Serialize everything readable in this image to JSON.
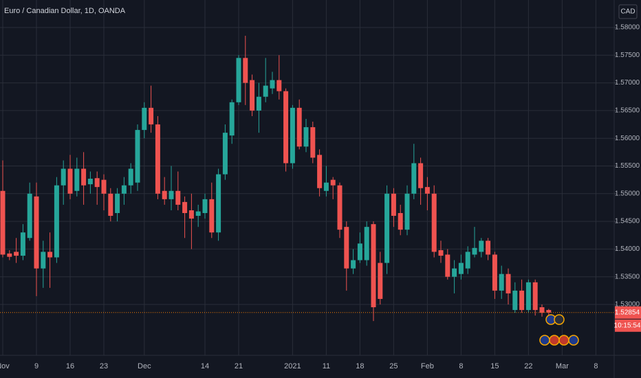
{
  "chart_data": {
    "type": "candlestick",
    "title": "Euro / Canadian Dollar, 1D, OANDA",
    "currency": "CAD",
    "up_color": "#26a69a",
    "down_color": "#ef5350",
    "grid": true,
    "categories": [
      "Nov",
      null,
      null,
      null,
      null,
      "9",
      null,
      null,
      null,
      null,
      "16",
      null,
      null,
      null,
      null,
      "23",
      null,
      null,
      null,
      null,
      null,
      "Dec",
      null,
      null,
      null,
      null,
      null,
      null,
      null,
      null,
      "14",
      null,
      null,
      null,
      null,
      "21",
      null,
      null,
      null,
      null,
      null,
      null,
      null,
      "2021",
      null,
      null,
      null,
      null,
      "11",
      null,
      null,
      null,
      null,
      "18",
      null,
      null,
      null,
      null,
      "25",
      null,
      null,
      null,
      null,
      "Feb",
      null,
      null,
      null,
      null,
      "8",
      null,
      null,
      null,
      null,
      "15",
      null,
      null,
      null,
      null,
      "22",
      null,
      null,
      null,
      null,
      "Mar",
      null,
      null,
      null,
      null,
      "8",
      null,
      null
    ],
    "open": [
      1.5505,
      1.5392,
      1.5395,
      1.5388,
      1.542,
      1.5495,
      1.5365,
      1.5395,
      1.5385,
      1.5515,
      1.5545,
      1.5505,
      1.5545,
      1.5517,
      1.5528,
      1.5525,
      1.55,
      1.5465,
      1.55,
      1.5515,
      1.552,
      1.5615,
      1.5655,
      1.5625,
      1.5505,
      1.549,
      1.5505,
      1.5485,
      1.547,
      1.546,
      1.5465,
      1.549,
      1.543,
      1.5535,
      1.5605,
      1.5665,
      1.5745,
      1.5705,
      1.565,
      1.5675,
      1.569,
      1.5705,
      1.5685,
      1.5555,
      1.5655,
      1.5585,
      1.562,
      1.557,
      1.5505,
      1.5525,
      1.5515,
      1.544,
      1.5365,
      1.538,
      1.538,
      1.5445,
      1.5375,
      1.5375,
      1.55,
      1.5465,
      1.5435,
      1.55,
      1.5555,
      1.5512,
      1.55,
      1.5398,
      1.539,
      1.535,
      1.5355,
      1.5365,
      1.539,
      1.5395,
      1.5415,
      1.539,
      1.5325,
      1.5355,
      1.529,
      1.5325,
      1.529,
      1.534,
      1.5295,
      1.529,
      null,
      null,
      null,
      null,
      null,
      null,
      null,
      null,
      null
    ],
    "high": [
      1.556,
      1.5398,
      1.542,
      1.5445,
      1.552,
      1.552,
      1.5415,
      1.543,
      1.553,
      1.556,
      1.557,
      1.5565,
      1.5575,
      1.554,
      1.554,
      1.5535,
      1.551,
      1.551,
      1.553,
      1.5555,
      1.5625,
      1.5665,
      1.5695,
      1.564,
      1.553,
      1.555,
      1.554,
      1.5495,
      1.55,
      1.548,
      1.55,
      1.552,
      1.5545,
      1.5625,
      1.567,
      1.575,
      1.5785,
      1.5715,
      1.57,
      1.5745,
      1.572,
      1.575,
      1.569,
      1.566,
      1.567,
      1.5635,
      1.563,
      1.558,
      1.555,
      1.553,
      1.552,
      1.545,
      1.54,
      1.543,
      1.545,
      1.545,
      1.5395,
      1.5515,
      1.551,
      1.548,
      1.5515,
      1.559,
      1.5565,
      1.553,
      1.5515,
      1.5415,
      1.54,
      1.538,
      1.539,
      1.5405,
      1.544,
      1.542,
      1.542,
      1.5395,
      1.537,
      1.5365,
      1.534,
      1.5345,
      1.5345,
      1.5345,
      1.53,
      1.5292,
      null,
      null,
      null,
      null,
      null,
      null,
      null,
      null,
      null
    ],
    "low": [
      1.5385,
      1.538,
      1.5375,
      1.538,
      1.5415,
      1.5315,
      1.533,
      1.533,
      1.5375,
      1.548,
      1.549,
      1.5495,
      1.548,
      1.55,
      1.548,
      1.547,
      1.545,
      1.545,
      1.548,
      1.55,
      1.5505,
      1.56,
      1.561,
      1.549,
      1.548,
      1.547,
      1.547,
      1.542,
      1.54,
      1.544,
      1.5455,
      1.542,
      1.5415,
      1.5525,
      1.559,
      1.566,
      1.566,
      1.564,
      1.561,
      1.5665,
      1.568,
      1.567,
      1.554,
      1.5545,
      1.558,
      1.5575,
      1.5555,
      1.5495,
      1.5495,
      1.549,
      1.542,
      1.5325,
      1.5355,
      1.5375,
      1.537,
      1.527,
      1.53,
      1.5355,
      1.544,
      1.5425,
      1.5425,
      1.549,
      1.548,
      1.547,
      1.5385,
      1.5375,
      1.5345,
      1.532,
      1.5345,
      1.5355,
      1.5385,
      1.5385,
      1.538,
      1.531,
      1.531,
      1.53,
      1.5285,
      1.5285,
      1.5285,
      1.528,
      1.5278,
      1.528,
      null,
      null,
      null,
      null,
      null,
      null,
      null,
      null,
      null
    ],
    "close": [
      1.539,
      1.5386,
      1.5388,
      1.543,
      1.55,
      1.5365,
      1.5395,
      1.5385,
      1.5515,
      1.5545,
      1.55,
      1.5545,
      1.5515,
      1.5527,
      1.5512,
      1.55,
      1.546,
      1.55,
      1.5515,
      1.5545,
      1.5615,
      1.5655,
      1.5625,
      1.55,
      1.549,
      1.5505,
      1.548,
      1.5465,
      1.5455,
      1.5468,
      1.549,
      1.543,
      1.5535,
      1.561,
      1.5665,
      1.5745,
      1.57,
      1.565,
      1.5675,
      1.5695,
      1.5705,
      1.5685,
      1.5555,
      1.5655,
      1.5585,
      1.562,
      1.5565,
      1.551,
      1.552,
      1.5515,
      1.5435,
      1.5365,
      1.538,
      1.541,
      1.544,
      1.5295,
      1.531,
      1.55,
      1.546,
      1.5435,
      1.55,
      1.5555,
      1.551,
      1.55,
      1.5395,
      1.5388,
      1.535,
      1.5365,
      1.5375,
      1.5395,
      1.5402,
      1.5415,
      1.539,
      1.5325,
      1.5355,
      1.532,
      1.5325,
      1.529,
      1.534,
      1.529,
      1.5285,
      1.52854,
      null,
      null,
      null,
      null,
      null,
      null,
      null,
      null,
      null
    ],
    "last_price": 1.52854,
    "countdown": "10:15:54",
    "ylim": [
      1.52082,
      1.58496
    ],
    "yticks": [
      {
        "value": 1.58,
        "label": "1.58000"
      },
      {
        "value": 1.575,
        "label": "1.57500"
      },
      {
        "value": 1.57,
        "label": "1.57000"
      },
      {
        "value": 1.565,
        "label": "1.56500"
      },
      {
        "value": 1.56,
        "label": "1.56000"
      },
      {
        "value": 1.555,
        "label": "1.55500"
      },
      {
        "value": 1.55,
        "label": "1.55000"
      },
      {
        "value": 1.545,
        "label": "1.54500"
      },
      {
        "value": 1.54,
        "label": "1.54000"
      },
      {
        "value": 1.535,
        "label": "1.53500"
      },
      {
        "value": 1.53,
        "label": "1.53000"
      }
    ]
  }
}
